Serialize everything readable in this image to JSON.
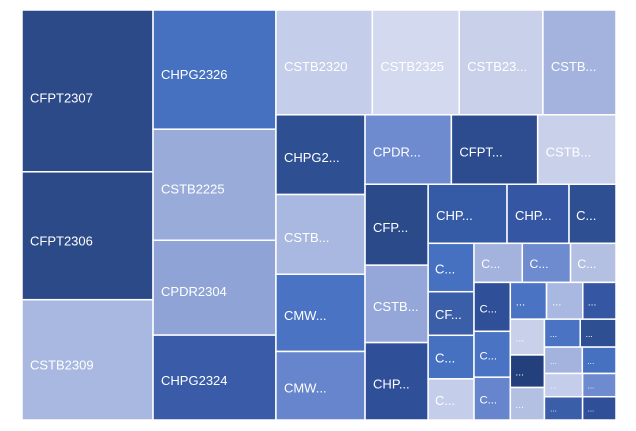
{
  "chart_data": {
    "type": "treemap",
    "items": [
      {
        "name": "CFPT2307",
        "value": 191,
        "color": "#2c4a87"
      },
      {
        "name": "CFPT2306",
        "value": 151,
        "color": "#2c4a87"
      },
      {
        "name": "CSTB2309",
        "value": 142,
        "color": "#a9b8e0"
      },
      {
        "name": "CHPG2326",
        "value": 132,
        "color": "#4670c0"
      },
      {
        "name": "CSTB2225",
        "value": 123,
        "color": "#99abd9"
      },
      {
        "name": "CPDR2304",
        "value": 105,
        "color": "#8fa3d6"
      },
      {
        "name": "CHPG2324",
        "value": 94,
        "color": "#3a5ca8"
      },
      {
        "name": "CSTB2320",
        "value": 91,
        "color": "#c4cde9"
      },
      {
        "name": "CSTB2325",
        "value": 82,
        "color": "#d3d9ee"
      },
      {
        "name": "CSTB23...",
        "value": 79,
        "color": "#c9d0ea"
      },
      {
        "name": "CSTB...",
        "value": 69,
        "color": "#a3b3de"
      },
      {
        "name": "CHPG2...",
        "value": 64,
        "color": "#2f4f93"
      },
      {
        "name": "CSTB...",
        "value": 64,
        "color": "#a9b8e0"
      },
      {
        "name": "CMW...",
        "value": 62,
        "color": "#4a73c4"
      },
      {
        "name": "CMW...",
        "value": 55,
        "color": "#6785cc"
      },
      {
        "name": "CPDR...",
        "value": 54,
        "color": "#6f8bd0"
      },
      {
        "name": "CFPT...",
        "value": 54,
        "color": "#2d4c8f"
      },
      {
        "name": "CSTB...",
        "value": 49,
        "color": "#c9d0ea"
      },
      {
        "name": "CFP...",
        "value": 46,
        "color": "#2b4a8a"
      },
      {
        "name": "CSTB...",
        "value": 44,
        "color": "#94a7d8"
      },
      {
        "name": "CHP...",
        "value": 44,
        "color": "#2f4f98"
      },
      {
        "name": "CHP...",
        "value": 42,
        "color": "#355aa6"
      },
      {
        "name": "CHP...",
        "value": 33,
        "color": "#3456a3"
      },
      {
        "name": "C...",
        "value": 25,
        "color": "#2f4f93"
      },
      {
        "name": "C...",
        "value": 20,
        "color": "#4670c0"
      },
      {
        "name": "CF...",
        "value": 18,
        "color": "#3b5ea8"
      },
      {
        "name": "C...",
        "value": 18,
        "color": "#4670c0"
      },
      {
        "name": "C...",
        "value": 17,
        "color": "#c4cde9"
      },
      {
        "name": "C...",
        "value": 17,
        "color": "#a3b3de"
      },
      {
        "name": "C...",
        "value": 17,
        "color": "#6f8bd0"
      },
      {
        "name": "C...",
        "value": 16,
        "color": "#b3c0e2"
      },
      {
        "name": "C...",
        "value": 16,
        "color": "#2f4f98"
      },
      {
        "name": "C...",
        "value": 15,
        "color": "#4a73c4"
      },
      {
        "name": "C...",
        "value": 14,
        "color": "#6785cc"
      },
      {
        "name": "...",
        "value": 12,
        "color": "#4a73c4"
      },
      {
        "name": "...",
        "value": 12,
        "color": "#a9b8e0"
      },
      {
        "name": "...",
        "value": 11,
        "color": "#3456a3"
      },
      {
        "name": "...",
        "value": 11,
        "color": "#c9d0ea"
      },
      {
        "name": "...",
        "value": 10,
        "color": "#233f7c"
      },
      {
        "name": "...",
        "value": 10,
        "color": "#b3c0e2"
      },
      {
        "name": "...",
        "value": 9,
        "color": "#4a73c4"
      },
      {
        "name": "...",
        "value": 9,
        "color": "#2f4f93"
      },
      {
        "name": "...",
        "value": 9,
        "color": "#a3b3de"
      },
      {
        "name": "...",
        "value": 8,
        "color": "#4670c0"
      },
      {
        "name": "...",
        "value": 8,
        "color": "#c4cde9"
      },
      {
        "name": "...",
        "value": 8,
        "color": "#3b5ea8"
      },
      {
        "name": "...",
        "value": 7,
        "color": "#6f8bd0"
      },
      {
        "name": "...",
        "value": 7,
        "color": "#2f4f98"
      }
    ]
  }
}
